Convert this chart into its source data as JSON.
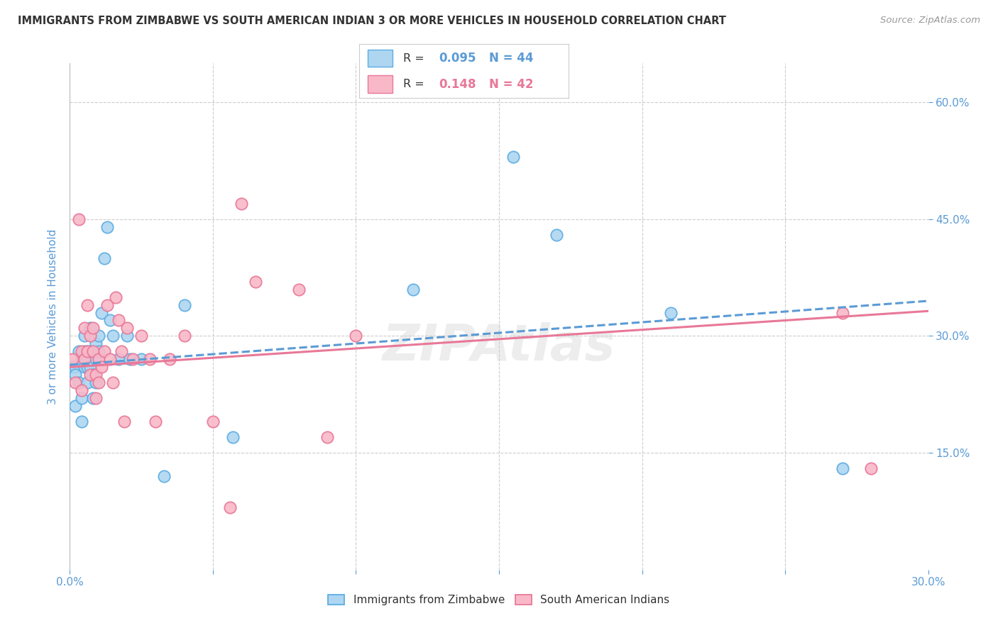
{
  "title": "IMMIGRANTS FROM ZIMBABWE VS SOUTH AMERICAN INDIAN 3 OR MORE VEHICLES IN HOUSEHOLD CORRELATION CHART",
  "source": "Source: ZipAtlas.com",
  "ylabel": "3 or more Vehicles in Household",
  "xlim": [
    0.0,
    0.3
  ],
  "ylim": [
    0.0,
    0.65
  ],
  "xticks": [
    0.0,
    0.05,
    0.1,
    0.15,
    0.2,
    0.25,
    0.3
  ],
  "xtick_labels_show": [
    "0.0%",
    "",
    "",
    "",
    "",
    "",
    "30.0%"
  ],
  "yticks_grid": [
    0.15,
    0.3,
    0.45,
    0.6
  ],
  "ytick_labels_right": [
    "15.0%",
    "30.0%",
    "45.0%",
    "60.0%"
  ],
  "color_blue_fill": "#AED6F1",
  "color_blue_edge": "#5DADE2",
  "color_pink_fill": "#F9B8C8",
  "color_pink_edge": "#E87898",
  "color_blue_line": "#5B9BD5",
  "color_pink_line": "#E87898",
  "color_axis": "#5B9BD5",
  "color_title": "#333333",
  "color_source": "#999999",
  "color_grid": "#CCCCCC",
  "background": "#FFFFFF",
  "r_blue": "0.095",
  "n_blue": "44",
  "r_pink": "0.148",
  "n_pink": "42",
  "legend_blue": "Immigrants from Zimbabwe",
  "legend_pink": "South American Indians",
  "blue_x": [
    0.001,
    0.002,
    0.002,
    0.002,
    0.003,
    0.003,
    0.004,
    0.004,
    0.004,
    0.005,
    0.005,
    0.005,
    0.006,
    0.006,
    0.006,
    0.006,
    0.007,
    0.007,
    0.007,
    0.008,
    0.008,
    0.008,
    0.009,
    0.009,
    0.009,
    0.01,
    0.01,
    0.011,
    0.012,
    0.013,
    0.014,
    0.015,
    0.017,
    0.02,
    0.021,
    0.025,
    0.033,
    0.04,
    0.057,
    0.12,
    0.155,
    0.17,
    0.21,
    0.27
  ],
  "blue_y": [
    0.26,
    0.21,
    0.26,
    0.25,
    0.24,
    0.28,
    0.27,
    0.22,
    0.19,
    0.3,
    0.28,
    0.26,
    0.27,
    0.26,
    0.24,
    0.28,
    0.31,
    0.26,
    0.28,
    0.25,
    0.22,
    0.25,
    0.29,
    0.27,
    0.24,
    0.3,
    0.28,
    0.33,
    0.4,
    0.44,
    0.32,
    0.3,
    0.27,
    0.3,
    0.27,
    0.27,
    0.12,
    0.34,
    0.17,
    0.36,
    0.53,
    0.43,
    0.33,
    0.13
  ],
  "pink_x": [
    0.001,
    0.002,
    0.003,
    0.004,
    0.004,
    0.005,
    0.005,
    0.006,
    0.006,
    0.007,
    0.007,
    0.008,
    0.008,
    0.009,
    0.009,
    0.01,
    0.01,
    0.011,
    0.012,
    0.013,
    0.014,
    0.015,
    0.016,
    0.017,
    0.018,
    0.019,
    0.02,
    0.022,
    0.025,
    0.028,
    0.03,
    0.035,
    0.04,
    0.05,
    0.056,
    0.06,
    0.065,
    0.08,
    0.09,
    0.1,
    0.27,
    0.28
  ],
  "pink_y": [
    0.27,
    0.24,
    0.45,
    0.28,
    0.23,
    0.31,
    0.27,
    0.34,
    0.28,
    0.3,
    0.25,
    0.31,
    0.28,
    0.25,
    0.22,
    0.27,
    0.24,
    0.26,
    0.28,
    0.34,
    0.27,
    0.24,
    0.35,
    0.32,
    0.28,
    0.19,
    0.31,
    0.27,
    0.3,
    0.27,
    0.19,
    0.27,
    0.3,
    0.19,
    0.08,
    0.47,
    0.37,
    0.36,
    0.17,
    0.3,
    0.33,
    0.13
  ],
  "blue_trend_x0": 0.0,
  "blue_trend_x1": 0.3,
  "blue_trend_y0": 0.263,
  "blue_trend_y1": 0.345,
  "pink_trend_x0": 0.0,
  "pink_trend_x1": 0.3,
  "pink_trend_y0": 0.26,
  "pink_trend_y1": 0.332
}
